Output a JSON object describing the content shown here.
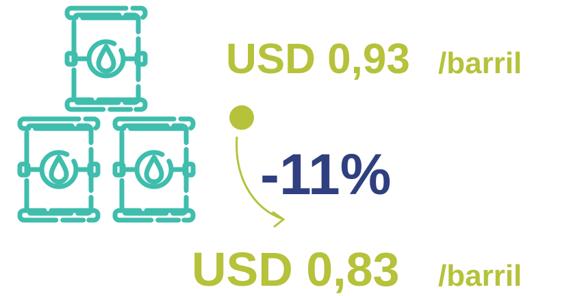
{
  "top": {
    "amount": "USD 0,93",
    "unit": "/barril"
  },
  "change": "-11%",
  "bottom": {
    "amount": "USD 0,83",
    "unit": "/barril"
  }
}
